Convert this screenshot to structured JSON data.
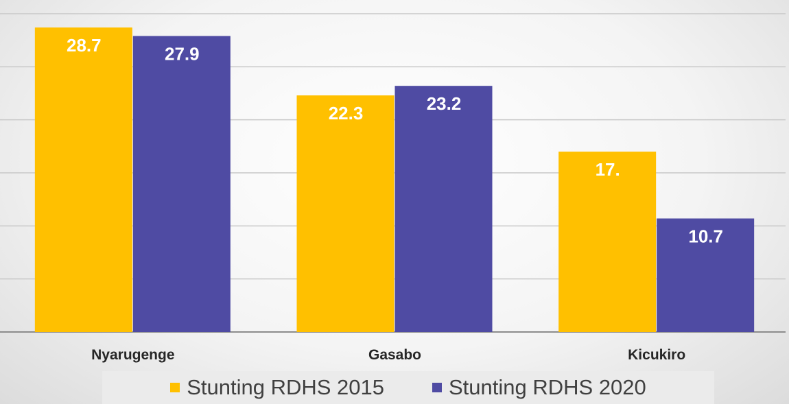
{
  "chart_data": {
    "type": "bar",
    "categories": [
      "Nyarugenge",
      "Gasabo",
      "Kicukiro"
    ],
    "series": [
      {
        "name": "Stunting RDHS 2015",
        "color": "#ffc000",
        "values": [
          28.7,
          22.3,
          17.0
        ],
        "labels": [
          "28.7",
          "22.3",
          "17."
        ]
      },
      {
        "name": "Stunting RDHS 2020",
        "color": "#4f4ba3",
        "values": [
          27.9,
          23.2,
          10.7
        ],
        "labels": [
          "27.9",
          "23.2",
          "10.7"
        ]
      }
    ],
    "ylim": [
      0,
      30
    ],
    "gridline_step": 5,
    "grid": true,
    "legend_position": "bottom",
    "title": "",
    "xlabel": "",
    "ylabel": ""
  }
}
